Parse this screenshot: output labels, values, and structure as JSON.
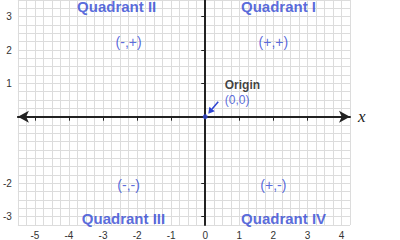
{
  "chart_data": {
    "type": "scatter",
    "x_label": "x",
    "xlim": [
      -5.5,
      4.25
    ],
    "ylim": [
      -3.25,
      3.5
    ],
    "xticks": [
      -5,
      -4,
      -3,
      -2,
      -1,
      0,
      1,
      2,
      3,
      4
    ],
    "yticks": [
      -3,
      -2,
      1,
      2,
      3
    ],
    "grid": true,
    "color": "#2f45d3",
    "points": [
      {
        "x": 0,
        "y": 0,
        "label": "Origin",
        "sublabel": "(0,0)"
      }
    ],
    "quadrant_labels": [
      {
        "text": "Quadrant II",
        "x": -2.6,
        "y": 3.3
      },
      {
        "text": "Quadrant I",
        "x": 2.15,
        "y": 3.3
      },
      {
        "text": "Quadrant III",
        "x": -2.4,
        "y": -3.05
      },
      {
        "text": "Quadrant IV",
        "x": 2.3,
        "y": -3.05
      }
    ],
    "sign_labels": [
      {
        "text": "(-,+)",
        "x": -2.25,
        "y": 2.25
      },
      {
        "text": "(+,+)",
        "x": 2.0,
        "y": 2.25
      },
      {
        "text": "(-,-)",
        "x": -2.25,
        "y": -2.05
      },
      {
        "text": "(+,-)",
        "x": 2.0,
        "y": -2.05
      }
    ]
  }
}
